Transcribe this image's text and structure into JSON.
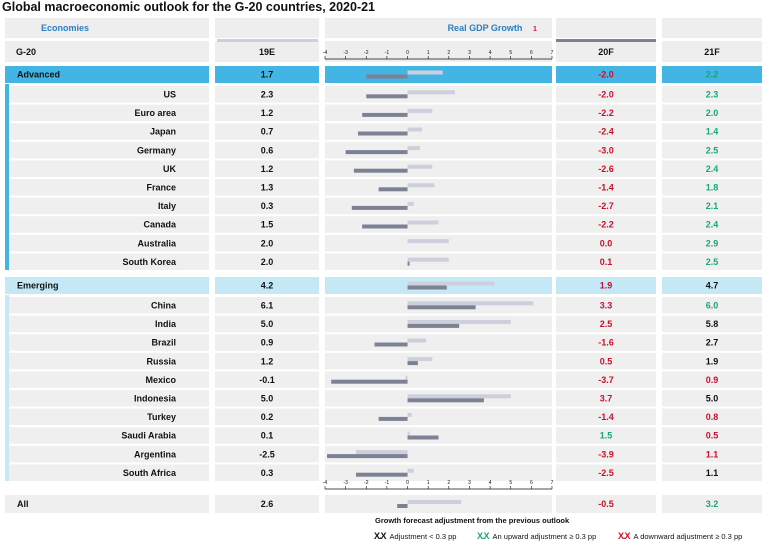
{
  "title": "Global macroeconomic outlook for the G-20 countries, 2020-21",
  "headers": {
    "economies": "Economies",
    "real_gdp": "Real GDP Growth",
    "footnote_mark": "1",
    "g20": "G-20",
    "col_19e": "19E",
    "col_20f": "20F",
    "col_21f": "21F"
  },
  "axis_ticks": [
    "-4",
    "-3",
    "-2",
    "-1",
    "0",
    "1",
    "2",
    "3",
    "4",
    "5",
    "6",
    "7"
  ],
  "legend": {
    "title": "Growth forecast adjustment from the previous outlook",
    "items": [
      {
        "mark": "X.X",
        "label": "Adjustment < 0.3 pp",
        "color": "#111111"
      },
      {
        "mark": "X.X",
        "label": "An upward adjustment ≥ 0.3 pp",
        "color": "#1aa57a"
      },
      {
        "mark": "X.X",
        "label": "A downward adjustment ≥ 0.3 pp",
        "color": "#c8102e"
      }
    ]
  },
  "colors": {
    "advanced_bar": "#43b5e4",
    "emerging_bar": "#c5e8f6",
    "bar_19e": "#cdd0dc",
    "bar_20f": "#7d8194",
    "red": "#c8102e",
    "green": "#1aa57a",
    "black": "#111111"
  },
  "chart_data": {
    "type": "table",
    "series": [
      {
        "name": "19E"
      },
      {
        "name": "20F"
      },
      {
        "name": "21F"
      }
    ],
    "groups": [
      {
        "name": "Advanced",
        "summary": {
          "v19": "1.7",
          "v20": "-2.0",
          "c20": "red",
          "v21": "2.2",
          "c21": "green"
        },
        "rows": [
          {
            "name": "US",
            "v19": "2.3",
            "v20": "-2.0",
            "c20": "red",
            "v21": "2.3",
            "c21": "green"
          },
          {
            "name": "Euro area",
            "v19": "1.2",
            "v20": "-2.2",
            "c20": "red",
            "v21": "2.0",
            "c21": "green"
          },
          {
            "name": "Japan",
            "v19": "0.7",
            "v20": "-2.4",
            "c20": "red",
            "v21": "1.4",
            "c21": "green"
          },
          {
            "name": "Germany",
            "v19": "0.6",
            "v20": "-3.0",
            "c20": "red",
            "v21": "2.5",
            "c21": "green"
          },
          {
            "name": "UK",
            "v19": "1.2",
            "v20": "-2.6",
            "c20": "red",
            "v21": "2.4",
            "c21": "green"
          },
          {
            "name": "France",
            "v19": "1.3",
            "v20": "-1.4",
            "c20": "red",
            "v21": "1.8",
            "c21": "green"
          },
          {
            "name": "Italy",
            "v19": "0.3",
            "v20": "-2.7",
            "c20": "red",
            "v21": "2.1",
            "c21": "green"
          },
          {
            "name": "Canada",
            "v19": "1.5",
            "v20": "-2.2",
            "c20": "red",
            "v21": "2.4",
            "c21": "green"
          },
          {
            "name": "Australia",
            "v19": "2.0",
            "v20": "0.0",
            "c20": "red",
            "v21": "2.9",
            "c21": "green"
          },
          {
            "name": "South Korea",
            "v19": "2.0",
            "v20": "0.1",
            "c20": "red",
            "v21": "2.5",
            "c21": "green"
          }
        ]
      },
      {
        "name": "Emerging",
        "summary": {
          "v19": "4.2",
          "v20": "1.9",
          "c20": "red",
          "v21": "4.7",
          "c21": "black"
        },
        "rows": [
          {
            "name": "China",
            "v19": "6.1",
            "v20": "3.3",
            "c20": "red",
            "v21": "6.0",
            "c21": "green"
          },
          {
            "name": "India",
            "v19": "5.0",
            "v20": "2.5",
            "c20": "red",
            "v21": "5.8",
            "c21": "black"
          },
          {
            "name": "Brazil",
            "v19": "0.9",
            "v20": "-1.6",
            "c20": "red",
            "v21": "2.7",
            "c21": "black"
          },
          {
            "name": "Russia",
            "v19": "1.2",
            "v20": "0.5",
            "c20": "red",
            "v21": "1.9",
            "c21": "black"
          },
          {
            "name": "Mexico",
            "v19": "-0.1",
            "v20": "-3.7",
            "c20": "red",
            "v21": "0.9",
            "c21": "red"
          },
          {
            "name": "Indonesia",
            "v19": "5.0",
            "v20": "3.7",
            "c20": "red",
            "v21": "5.0",
            "c21": "black"
          },
          {
            "name": "Turkey",
            "v19": "0.2",
            "v20": "-1.4",
            "c20": "red",
            "v21": "0.8",
            "c21": "red"
          },
          {
            "name": "Saudi Arabia",
            "v19": "0.1",
            "v20": "1.5",
            "c20": "green",
            "v21": "0.5",
            "c21": "red"
          },
          {
            "name": "Argentina",
            "v19": "-2.5",
            "v20": "-3.9",
            "c20": "red",
            "v21": "1.1",
            "c21": "red"
          },
          {
            "name": "South Africa",
            "v19": "0.3",
            "v20": "-2.5",
            "c20": "red",
            "v21": "1.1",
            "c21": "black"
          }
        ]
      }
    ],
    "total": {
      "name": "All",
      "v19": "2.6",
      "v20": "-0.5",
      "c20": "red",
      "v21": "3.2",
      "c21": "green"
    },
    "xlim": [
      -4,
      7
    ]
  }
}
